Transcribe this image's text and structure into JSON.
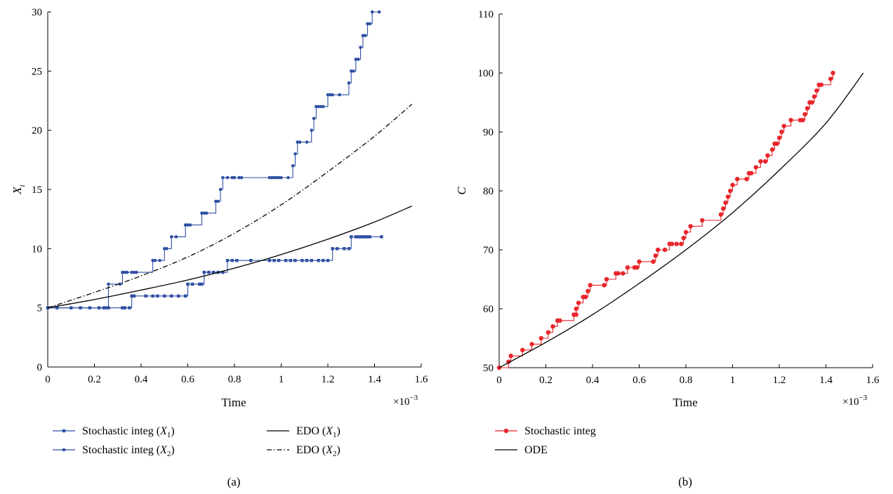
{
  "chart_data": [
    {
      "type": "line",
      "panel_label": "(a)",
      "xlabel": "Time",
      "ylabel_main": "X",
      "ylabel_sub": "i",
      "x_exponent_label": "×10",
      "x_exponent": "−3",
      "xlim": [
        0,
        1.6
      ],
      "ylim": [
        0,
        30
      ],
      "x_ticks": [
        "0",
        "0.2",
        "0.4",
        "0.6",
        "0.8",
        "1",
        "1.2",
        "1.4",
        "1.6"
      ],
      "y_ticks": [
        "0",
        "5",
        "10",
        "15",
        "20",
        "25",
        "30"
      ],
      "grid": false,
      "legend_position": "bottom",
      "colors": {
        "stochastic": "#2e4fa3",
        "ode": "#000000"
      },
      "series": [
        {
          "name": "Stochastic integ (X1)",
          "legend_text": "Stochastic integ (",
          "legend_var": "X",
          "legend_sub": "1",
          "legend_close": ")",
          "style": "solid-square-markers",
          "points": [
            [
              0,
              5
            ],
            [
              0.04,
              5
            ],
            [
              0.1,
              5
            ],
            [
              0.14,
              5
            ],
            [
              0.18,
              5
            ],
            [
              0.22,
              5
            ],
            [
              0.24,
              5
            ],
            [
              0.26,
              5
            ],
            [
              0.32,
              5
            ],
            [
              0.33,
              5
            ],
            [
              0.35,
              5
            ],
            [
              0.36,
              6
            ],
            [
              0.37,
              6
            ],
            [
              0.42,
              6
            ],
            [
              0.45,
              6
            ],
            [
              0.47,
              6
            ],
            [
              0.5,
              6
            ],
            [
              0.53,
              6
            ],
            [
              0.56,
              6
            ],
            [
              0.59,
              6
            ],
            [
              0.6,
              7
            ],
            [
              0.62,
              7
            ],
            [
              0.65,
              7
            ],
            [
              0.66,
              7
            ],
            [
              0.67,
              8
            ],
            [
              0.69,
              8
            ],
            [
              0.71,
              8
            ],
            [
              0.73,
              8
            ],
            [
              0.75,
              8
            ],
            [
              0.77,
              9
            ],
            [
              0.79,
              9
            ],
            [
              0.81,
              9
            ],
            [
              0.87,
              9
            ],
            [
              0.95,
              9
            ],
            [
              0.97,
              9
            ],
            [
              0.99,
              9
            ],
            [
              1.02,
              9
            ],
            [
              1.04,
              9
            ],
            [
              1.06,
              9
            ],
            [
              1.09,
              9
            ],
            [
              1.11,
              9
            ],
            [
              1.13,
              9
            ],
            [
              1.16,
              9
            ],
            [
              1.18,
              9
            ],
            [
              1.2,
              9
            ],
            [
              1.22,
              10
            ],
            [
              1.24,
              10
            ],
            [
              1.27,
              10
            ],
            [
              1.29,
              10
            ],
            [
              1.3,
              11
            ],
            [
              1.32,
              11
            ],
            [
              1.33,
              11
            ],
            [
              1.34,
              11
            ],
            [
              1.35,
              11
            ],
            [
              1.36,
              11
            ],
            [
              1.37,
              11
            ],
            [
              1.38,
              11
            ],
            [
              1.43,
              11
            ]
          ]
        },
        {
          "name": "Stochastic integ (X2)",
          "legend_text": "Stochastic integ (",
          "legend_var": "X",
          "legend_sub": "2",
          "legend_close": ")",
          "style": "solid-dot-markers",
          "points": [
            [
              0,
              5
            ],
            [
              0.25,
              5
            ],
            [
              0.26,
              7
            ],
            [
              0.31,
              7
            ],
            [
              0.32,
              8
            ],
            [
              0.33,
              8
            ],
            [
              0.34,
              8
            ],
            [
              0.36,
              8
            ],
            [
              0.37,
              8
            ],
            [
              0.38,
              8
            ],
            [
              0.45,
              9
            ],
            [
              0.46,
              9
            ],
            [
              0.48,
              9
            ],
            [
              0.5,
              10
            ],
            [
              0.51,
              10
            ],
            [
              0.53,
              11
            ],
            [
              0.55,
              11
            ],
            [
              0.59,
              12
            ],
            [
              0.6,
              12
            ],
            [
              0.61,
              12
            ],
            [
              0.66,
              13
            ],
            [
              0.67,
              13
            ],
            [
              0.68,
              13
            ],
            [
              0.72,
              14
            ],
            [
              0.73,
              14
            ],
            [
              0.74,
              15
            ],
            [
              0.75,
              16
            ],
            [
              0.77,
              16
            ],
            [
              0.79,
              16
            ],
            [
              0.8,
              16
            ],
            [
              0.82,
              16
            ],
            [
              0.83,
              16
            ],
            [
              0.95,
              16
            ],
            [
              0.96,
              16
            ],
            [
              0.97,
              16
            ],
            [
              0.98,
              16
            ],
            [
              0.99,
              16
            ],
            [
              1.0,
              16
            ],
            [
              1.03,
              16
            ],
            [
              1.05,
              17
            ],
            [
              1.06,
              18
            ],
            [
              1.07,
              19
            ],
            [
              1.08,
              19
            ],
            [
              1.11,
              19
            ],
            [
              1.13,
              20
            ],
            [
              1.14,
              21
            ],
            [
              1.15,
              22
            ],
            [
              1.16,
              22
            ],
            [
              1.17,
              22
            ],
            [
              1.18,
              22
            ],
            [
              1.2,
              23
            ],
            [
              1.21,
              23
            ],
            [
              1.22,
              23
            ],
            [
              1.25,
              23
            ],
            [
              1.29,
              24
            ],
            [
              1.3,
              25
            ],
            [
              1.31,
              25
            ],
            [
              1.32,
              26
            ],
            [
              1.33,
              26
            ],
            [
              1.34,
              27
            ],
            [
              1.35,
              28
            ],
            [
              1.36,
              28
            ],
            [
              1.37,
              29
            ],
            [
              1.38,
              29
            ],
            [
              1.39,
              30
            ],
            [
              1.42,
              30
            ]
          ]
        },
        {
          "name": "EDO (X1)",
          "legend_text": "EDO (",
          "legend_var": "X",
          "legend_sub": "1",
          "legend_close": ")",
          "style": "solid-line",
          "points": [
            [
              0,
              5
            ],
            [
              0.2,
              5.7
            ],
            [
              0.4,
              6.5
            ],
            [
              0.6,
              7.35
            ],
            [
              0.8,
              8.35
            ],
            [
              1.0,
              9.5
            ],
            [
              1.2,
              10.8
            ],
            [
              1.4,
              12.25
            ],
            [
              1.56,
              13.6
            ]
          ]
        },
        {
          "name": "EDO (X2)",
          "legend_text": "EDO (",
          "legend_var": "X",
          "legend_sub": "2",
          "legend_close": ")",
          "style": "dash-dot-line",
          "points": [
            [
              0,
              5
            ],
            [
              0.2,
              6.3
            ],
            [
              0.4,
              7.7
            ],
            [
              0.6,
              9.3
            ],
            [
              0.8,
              11.3
            ],
            [
              1.0,
              13.7
            ],
            [
              1.2,
              16.5
            ],
            [
              1.4,
              19.5
            ],
            [
              1.56,
              22.2
            ]
          ]
        }
      ]
    },
    {
      "type": "line",
      "panel_label": "(b)",
      "xlabel": "Time",
      "ylabel_main": "C",
      "x_exponent_label": "×10",
      "x_exponent": "−3",
      "xlim": [
        0,
        1.6
      ],
      "ylim": [
        50,
        110
      ],
      "x_ticks": [
        "0",
        "0.2",
        "0.4",
        "0.6",
        "0.8",
        "1",
        "1.2",
        "1.4",
        "1.6"
      ],
      "y_ticks": [
        "50",
        "60",
        "70",
        "80",
        "90",
        "100",
        "110"
      ],
      "grid": false,
      "legend_position": "bottom",
      "colors": {
        "stochastic": "#e8262b",
        "ode": "#000000"
      },
      "series": [
        {
          "name": "Stochastic integ",
          "legend_text": "Stochastic integ",
          "style": "solid-dot-markers",
          "points": [
            [
              0,
              50
            ],
            [
              0.04,
              51
            ],
            [
              0.05,
              52
            ],
            [
              0.1,
              53
            ],
            [
              0.14,
              54
            ],
            [
              0.18,
              55
            ],
            [
              0.21,
              56
            ],
            [
              0.23,
              57
            ],
            [
              0.25,
              58
            ],
            [
              0.26,
              58
            ],
            [
              0.32,
              59
            ],
            [
              0.33,
              59
            ],
            [
              0.33,
              60
            ],
            [
              0.34,
              61
            ],
            [
              0.36,
              62
            ],
            [
              0.37,
              62
            ],
            [
              0.38,
              63
            ],
            [
              0.39,
              64
            ],
            [
              0.45,
              64
            ],
            [
              0.46,
              65
            ],
            [
              0.5,
              66
            ],
            [
              0.51,
              66
            ],
            [
              0.53,
              66
            ],
            [
              0.55,
              67
            ],
            [
              0.58,
              67
            ],
            [
              0.59,
              67
            ],
            [
              0.6,
              68
            ],
            [
              0.66,
              68
            ],
            [
              0.67,
              69
            ],
            [
              0.68,
              70
            ],
            [
              0.71,
              70
            ],
            [
              0.73,
              71
            ],
            [
              0.74,
              71
            ],
            [
              0.76,
              71
            ],
            [
              0.78,
              71
            ],
            [
              0.79,
              72
            ],
            [
              0.8,
              73
            ],
            [
              0.82,
              74
            ],
            [
              0.87,
              75
            ],
            [
              0.95,
              76
            ],
            [
              0.96,
              77
            ],
            [
              0.97,
              78
            ],
            [
              0.98,
              79
            ],
            [
              0.99,
              80
            ],
            [
              1.0,
              81
            ],
            [
              1.02,
              82
            ],
            [
              1.06,
              82
            ],
            [
              1.07,
              83
            ],
            [
              1.08,
              83
            ],
            [
              1.1,
              84
            ],
            [
              1.12,
              85
            ],
            [
              1.14,
              85
            ],
            [
              1.15,
              86
            ],
            [
              1.17,
              87
            ],
            [
              1.18,
              88
            ],
            [
              1.19,
              88
            ],
            [
              1.2,
              89
            ],
            [
              1.21,
              90
            ],
            [
              1.22,
              91
            ],
            [
              1.25,
              92
            ],
            [
              1.29,
              92
            ],
            [
              1.3,
              92
            ],
            [
              1.31,
              93
            ],
            [
              1.32,
              94
            ],
            [
              1.33,
              95
            ],
            [
              1.34,
              95
            ],
            [
              1.35,
              96
            ],
            [
              1.36,
              97
            ],
            [
              1.37,
              98
            ],
            [
              1.38,
              98
            ],
            [
              1.42,
              99
            ],
            [
              1.43,
              100
            ]
          ]
        },
        {
          "name": "ODE",
          "legend_text": "ODE",
          "style": "solid-line",
          "points": [
            [
              0,
              50
            ],
            [
              0.2,
              54.3
            ],
            [
              0.4,
              59
            ],
            [
              0.6,
              64.3
            ],
            [
              0.8,
              70
            ],
            [
              1.0,
              76.3
            ],
            [
              1.2,
              83.5
            ],
            [
              1.4,
              91.5
            ],
            [
              1.56,
              100
            ]
          ]
        }
      ]
    }
  ]
}
